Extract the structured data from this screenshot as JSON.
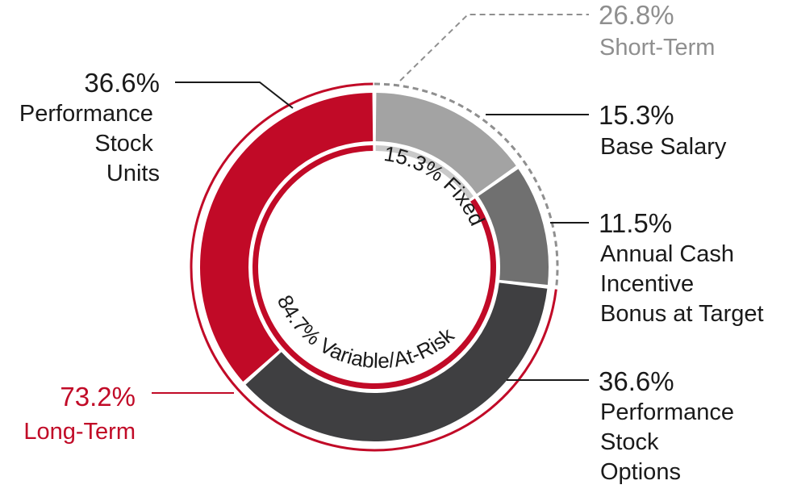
{
  "chart_data": {
    "type": "pie",
    "subtype": "nested-donut",
    "title": "",
    "segments": [
      {
        "label": "Base Salary",
        "value": 15.3,
        "value_label": "15.3%",
        "color": "#a3a3a3"
      },
      {
        "label": "Annual Cash Incentive Bonus at Target",
        "value": 11.5,
        "value_label": "11.5%",
        "color": "#707070"
      },
      {
        "label": "Performance Stock Options",
        "value": 36.6,
        "value_label": "36.6%",
        "color": "#3f3f41"
      },
      {
        "label": "Performance Stock Units",
        "value": 36.6,
        "value_label": "36.6%",
        "color": "#c10a27"
      }
    ],
    "inner_ring": [
      {
        "label": "15.3% Fixed",
        "value": 15.3,
        "color": "#c9c9c9"
      },
      {
        "label": "84.7% Variable/At-Risk",
        "value": 84.7,
        "color": "#c10a27"
      }
    ],
    "groups": [
      {
        "label": "Short-Term",
        "value_label": "26.8%",
        "value": 26.8,
        "color": "#8f8f8f"
      },
      {
        "label": "Long-Term",
        "value_label": "73.2%",
        "value": 73.2,
        "color": "#c10a27"
      }
    ]
  }
}
